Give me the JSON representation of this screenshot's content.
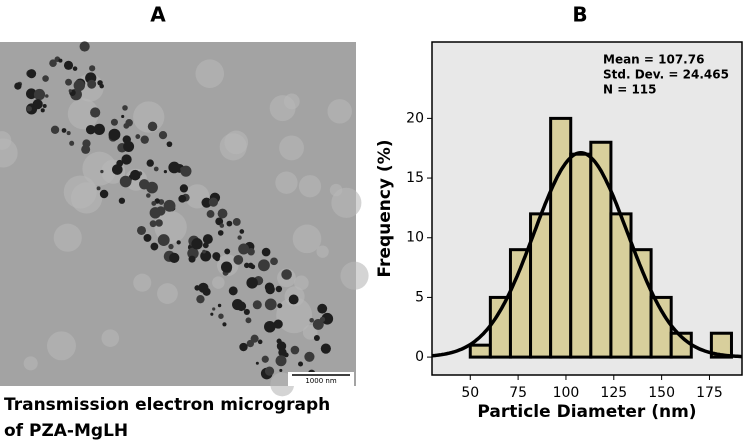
{
  "image_panel": {
    "label": "A",
    "scale_bar": "1000 nm",
    "caption": [
      "Transmission electron micrograph",
      "of PZA-MgLH"
    ]
  },
  "chart_data": {
    "type": "histogram",
    "panel_label": "B",
    "xlabel": "Particle Diameter (nm)",
    "ylabel": "Frequency (%)",
    "annotation": [
      "Mean = 107.76",
      "Std. Dev. = 24.465",
      "N = 115"
    ],
    "bins": [
      50,
      60.5,
      71,
      81.5,
      92,
      102.5,
      113,
      123.5,
      134,
      144.5,
      155,
      165.5,
      176,
      186.5
    ],
    "values": [
      1,
      5,
      9,
      12,
      20,
      17,
      18,
      12,
      9,
      5,
      2,
      0,
      2
    ],
    "color": "#d8cf9c",
    "plot_background": "#e8e8e8",
    "fit": {
      "mean": 107.76,
      "sd": 24.465
    },
    "xlim": [
      30,
      192
    ],
    "ylim": [
      -1.5,
      26.4
    ],
    "xticks": [
      50,
      75,
      100,
      125,
      150,
      175
    ],
    "yticks": [
      0,
      5,
      10,
      15,
      20
    ],
    "grid": false
  }
}
